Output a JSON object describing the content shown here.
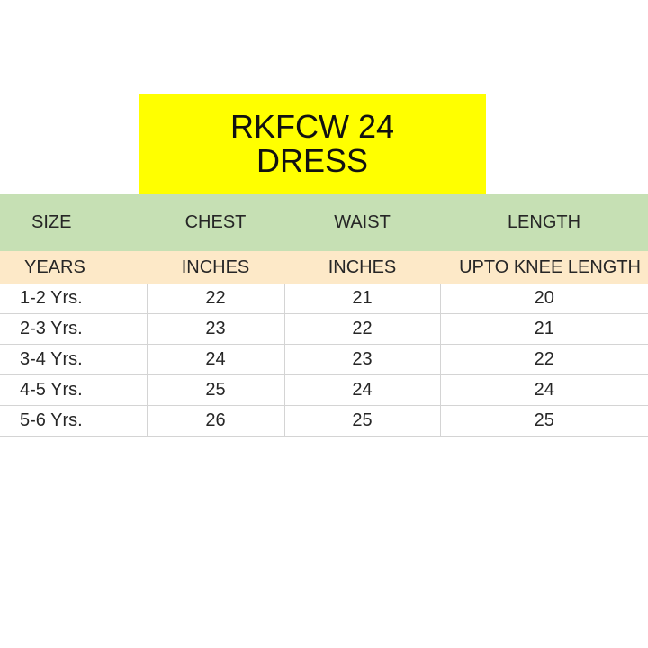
{
  "title": {
    "line1": "RKFCW 24",
    "line2": "DRESS"
  },
  "headers": [
    "SIZE",
    "CHEST",
    "WAIST",
    "LENGTH"
  ],
  "units": [
    "YEARS",
    "INCHES",
    "INCHES",
    "UPTO KNEE LENGTH"
  ],
  "rows": [
    [
      "1-2 Yrs.",
      "22",
      "21",
      "20"
    ],
    [
      "2-3 Yrs.",
      "23",
      "22",
      "21"
    ],
    [
      "3-4 Yrs.",
      "24",
      "23",
      "22"
    ],
    [
      "4-5 Yrs.",
      "25",
      "24",
      "24"
    ],
    [
      "5-6 Yrs.",
      "26",
      "25",
      "25"
    ]
  ],
  "colors": {
    "title_background": "#ffff00",
    "header_background": "#c6e0b4",
    "unit_background": "#fde9c8"
  }
}
